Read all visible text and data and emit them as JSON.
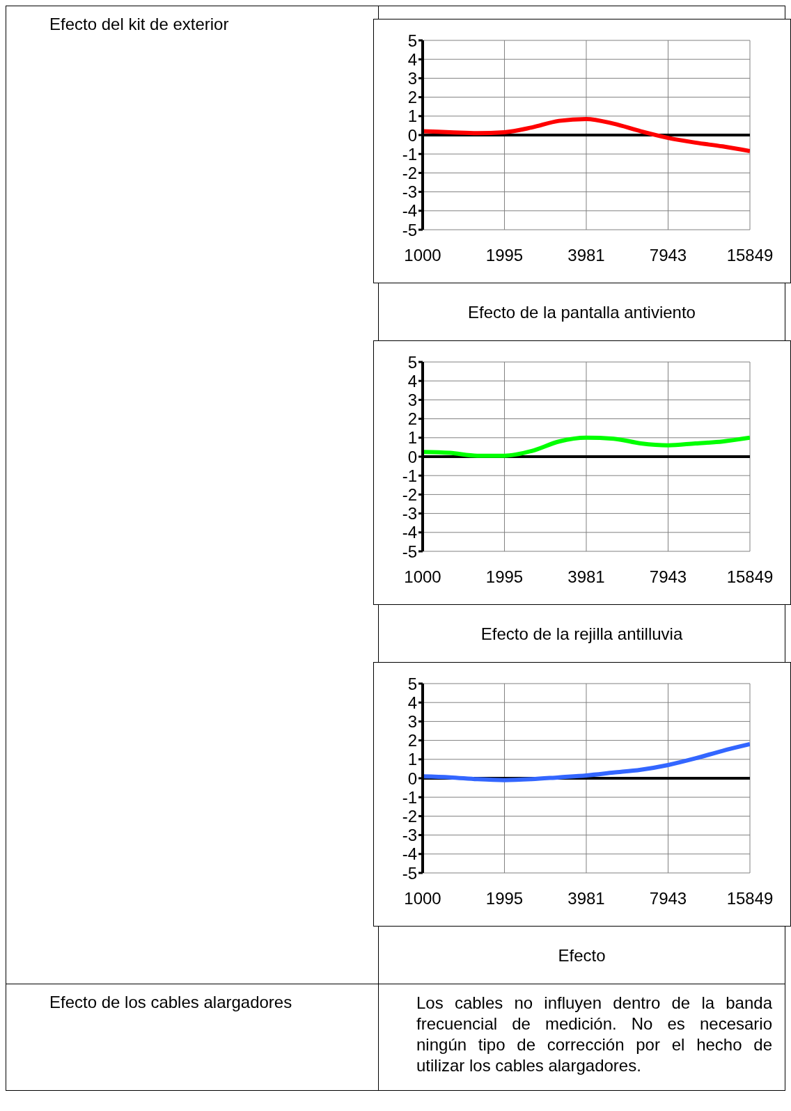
{
  "chart_data": [
    {
      "type": "line",
      "title": "Efecto de la pantalla antiviento",
      "x": [
        1000,
        1259,
        1585,
        1995,
        2512,
        3162,
        3981,
        5012,
        6310,
        7943,
        10000,
        12589,
        15849
      ],
      "series": [
        {
          "color": "#ff0000",
          "values": [
            0.2,
            0.15,
            0.1,
            0.15,
            0.4,
            0.75,
            0.85,
            0.6,
            0.2,
            -0.15,
            -0.4,
            -0.6,
            -0.85
          ]
        }
      ],
      "xlim": [
        1000,
        15849
      ],
      "xticks": [
        1000,
        1995,
        3981,
        7943,
        15849
      ],
      "ylim": [
        -5,
        5
      ],
      "yticks": [
        -5,
        -4,
        -3,
        -2,
        -1,
        0,
        1,
        2,
        3,
        4,
        5
      ],
      "log": "x",
      "grid": true,
      "marker": "none",
      "ref_lines": [
        {
          "axis": "y",
          "value": 0,
          "color": "#000000"
        }
      ]
    },
    {
      "type": "line",
      "title": "Efecto de la rejilla antilluvia",
      "x": [
        1000,
        1259,
        1585,
        1995,
        2512,
        3162,
        3981,
        5012,
        6310,
        7943,
        10000,
        12589,
        15849
      ],
      "series": [
        {
          "color": "#00ff00",
          "values": [
            0.25,
            0.2,
            0.05,
            0.05,
            0.3,
            0.8,
            1.0,
            0.95,
            0.7,
            0.6,
            0.7,
            0.8,
            1.0
          ]
        }
      ],
      "xlim": [
        1000,
        15849
      ],
      "xticks": [
        1000,
        1995,
        3981,
        7943,
        15849
      ],
      "ylim": [
        -5,
        5
      ],
      "yticks": [
        -5,
        -4,
        -3,
        -2,
        -1,
        0,
        1,
        2,
        3,
        4,
        5
      ],
      "log": "x",
      "grid": true,
      "marker": "none",
      "ref_lines": [
        {
          "axis": "y",
          "value": 0,
          "color": "#000000"
        }
      ]
    },
    {
      "type": "line",
      "title": "Efecto",
      "x": [
        1000,
        1259,
        1585,
        1995,
        2512,
        3162,
        3981,
        5012,
        6310,
        7943,
        10000,
        12589,
        15849
      ],
      "series": [
        {
          "color": "#3366ff",
          "values": [
            0.1,
            0.05,
            -0.05,
            -0.1,
            -0.05,
            0.05,
            0.15,
            0.3,
            0.45,
            0.7,
            1.05,
            1.45,
            1.8
          ]
        }
      ],
      "xlim": [
        1000,
        15849
      ],
      "xticks": [
        1000,
        1995,
        3981,
        7943,
        15849
      ],
      "ylim": [
        -5,
        5
      ],
      "yticks": [
        -5,
        -4,
        -3,
        -2,
        -1,
        0,
        1,
        2,
        3,
        4,
        5
      ],
      "log": "x",
      "grid": true,
      "marker": "none",
      "ref_lines": [
        {
          "axis": "y",
          "value": 0,
          "color": "#000000"
        }
      ]
    },
    {
      "type": "other",
      "annotations": [
        "Efecto del kit de exterior",
        "Efecto de los cables alargadores",
        "Los cables no influyen dentro de la banda frecuencial de medición. No es necesario ningún tipo de corrección por el hecho de utilizar los cables alargadores."
      ]
    }
  ]
}
